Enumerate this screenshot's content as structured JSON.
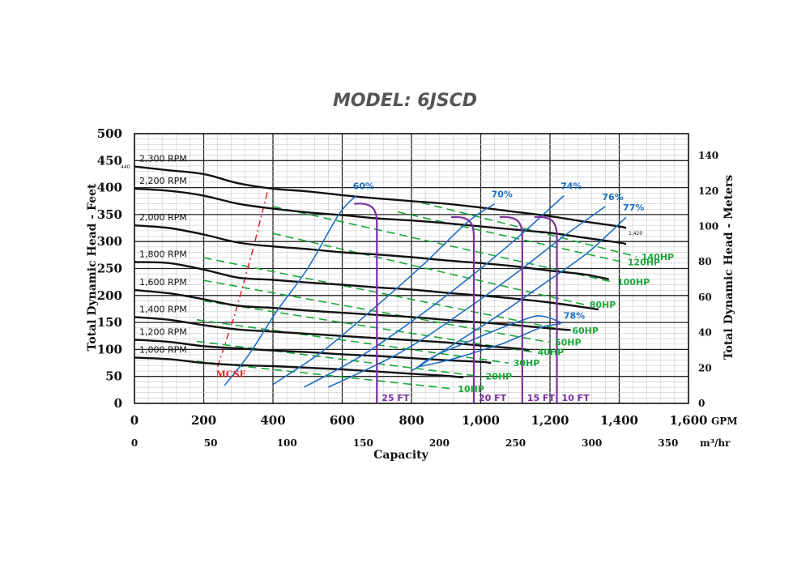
{
  "title": "MODEL: 6JSCD",
  "chart_data": {
    "type": "line",
    "title": "MODEL: 6JSCD",
    "xlabel": "Capacity",
    "ylabel": "Total Dynamic Head - Feet",
    "ylabel_right": "Total Dynamic Head - Meters",
    "x_unit": "GPM",
    "x2_unit": "m³/hr",
    "xlim": [
      0,
      1600
    ],
    "ylim": [
      0,
      500
    ],
    "x_ticks": [
      "0",
      "200",
      "400",
      "600",
      "800",
      "1,000",
      "1,200",
      "1,400",
      "1,600"
    ],
    "x2_ticks": [
      "0",
      "50",
      "100",
      "150",
      "200",
      "250",
      "300",
      "350"
    ],
    "y_ticks": [
      "0",
      "50",
      "100",
      "150",
      "200",
      "250",
      "300",
      "350",
      "400",
      "450",
      "500"
    ],
    "y2_ticks": [
      "0",
      "20",
      "40",
      "60",
      "80",
      "100",
      "120",
      "140"
    ],
    "small_labels": {
      "left_440": "440",
      "right_1420": "1,420"
    },
    "grid": true,
    "speed_curves": [
      {
        "name": "2,300 RPM",
        "points": [
          [
            0,
            439
          ],
          [
            100,
            432
          ],
          [
            200,
            425
          ],
          [
            300,
            408
          ],
          [
            400,
            398
          ],
          [
            500,
            393
          ],
          [
            600,
            386
          ],
          [
            700,
            380
          ],
          [
            800,
            375
          ],
          [
            900,
            370
          ],
          [
            1000,
            363
          ],
          [
            1100,
            355
          ],
          [
            1200,
            347
          ],
          [
            1300,
            337
          ],
          [
            1400,
            328
          ],
          [
            1420,
            325
          ]
        ]
      },
      {
        "name": "2,200 RPM",
        "points": [
          [
            0,
            398
          ],
          [
            100,
            394
          ],
          [
            200,
            385
          ],
          [
            300,
            370
          ],
          [
            400,
            361
          ],
          [
            500,
            354
          ],
          [
            600,
            349
          ],
          [
            700,
            343
          ],
          [
            800,
            339
          ],
          [
            900,
            334
          ],
          [
            1000,
            328
          ],
          [
            1100,
            322
          ],
          [
            1200,
            316
          ],
          [
            1300,
            307
          ],
          [
            1400,
            298
          ],
          [
            1420,
            295
          ]
        ]
      },
      {
        "name": "2,000 RPM",
        "points": [
          [
            0,
            330
          ],
          [
            100,
            325
          ],
          [
            200,
            313
          ],
          [
            300,
            298
          ],
          [
            400,
            291
          ],
          [
            500,
            286
          ],
          [
            600,
            280
          ],
          [
            700,
            276
          ],
          [
            800,
            271
          ],
          [
            900,
            265
          ],
          [
            1000,
            260
          ],
          [
            1100,
            254
          ],
          [
            1200,
            246
          ],
          [
            1300,
            239
          ],
          [
            1370,
            230
          ]
        ]
      },
      {
        "name": "1,800 RPM",
        "points": [
          [
            0,
            262
          ],
          [
            100,
            260
          ],
          [
            200,
            248
          ],
          [
            300,
            233
          ],
          [
            400,
            229
          ],
          [
            500,
            224
          ],
          [
            600,
            220
          ],
          [
            700,
            215
          ],
          [
            800,
            211
          ],
          [
            900,
            205
          ],
          [
            1000,
            200
          ],
          [
            1100,
            194
          ],
          [
            1200,
            187
          ],
          [
            1300,
            178
          ],
          [
            1340,
            174
          ]
        ]
      },
      {
        "name": "1,600 RPM",
        "points": [
          [
            0,
            210
          ],
          [
            100,
            204
          ],
          [
            200,
            193
          ],
          [
            300,
            181
          ],
          [
            400,
            177
          ],
          [
            500,
            172
          ],
          [
            600,
            168
          ],
          [
            700,
            164
          ],
          [
            800,
            160
          ],
          [
            900,
            155
          ],
          [
            1000,
            150
          ],
          [
            1100,
            145
          ],
          [
            1200,
            139
          ],
          [
            1260,
            136
          ]
        ]
      },
      {
        "name": "1,400 RPM",
        "points": [
          [
            0,
            160
          ],
          [
            100,
            155
          ],
          [
            200,
            145
          ],
          [
            300,
            137
          ],
          [
            400,
            133
          ],
          [
            500,
            129
          ],
          [
            600,
            125
          ],
          [
            700,
            121
          ],
          [
            800,
            117
          ],
          [
            900,
            113
          ],
          [
            1000,
            107
          ],
          [
            1100,
            102
          ],
          [
            1140,
            99
          ]
        ]
      },
      {
        "name": "1,200 RPM",
        "points": [
          [
            0,
            118
          ],
          [
            100,
            114
          ],
          [
            200,
            106
          ],
          [
            300,
            102
          ],
          [
            400,
            98
          ],
          [
            500,
            95
          ],
          [
            600,
            91
          ],
          [
            700,
            88
          ],
          [
            800,
            84
          ],
          [
            900,
            80
          ],
          [
            1000,
            77
          ],
          [
            1030,
            75
          ]
        ]
      },
      {
        "name": "1,000 RPM",
        "points": [
          [
            0,
            85
          ],
          [
            100,
            82
          ],
          [
            200,
            75
          ],
          [
            300,
            71
          ],
          [
            400,
            69
          ],
          [
            500,
            66
          ],
          [
            600,
            63
          ],
          [
            700,
            59
          ],
          [
            800,
            55
          ],
          [
            900,
            51
          ],
          [
            950,
            48
          ]
        ]
      }
    ],
    "efficiency_curves": [
      {
        "name": "60%",
        "points": [
          [
            260,
            33
          ],
          [
            330,
            90
          ],
          [
            410,
            170
          ],
          [
            500,
            250
          ],
          [
            590,
            350
          ],
          [
            640,
            385
          ]
        ]
      },
      {
        "name": "70%",
        "points": [
          [
            400,
            35
          ],
          [
            540,
            95
          ],
          [
            680,
            170
          ],
          [
            830,
            255
          ],
          [
            960,
            335
          ],
          [
            1040,
            370
          ]
        ]
      },
      {
        "name": "74%",
        "points": [
          [
            490,
            30
          ],
          [
            660,
            90
          ],
          [
            850,
            175
          ],
          [
            1000,
            250
          ],
          [
            1120,
            315
          ],
          [
            1240,
            385
          ]
        ]
      },
      {
        "name": "76%",
        "points": [
          [
            560,
            30
          ],
          [
            770,
            95
          ],
          [
            960,
            175
          ],
          [
            1120,
            250
          ],
          [
            1240,
            310
          ],
          [
            1360,
            365
          ]
        ]
      },
      {
        "name": "77%",
        "points": [
          [
            800,
            60
          ],
          [
            1020,
            150
          ],
          [
            1190,
            225
          ],
          [
            1310,
            280
          ],
          [
            1420,
            345
          ]
        ]
      },
      {
        "name": "78%",
        "points": [
          [
            820,
            68
          ],
          [
            880,
            76
          ],
          [
            940,
            86
          ],
          [
            1000,
            98
          ],
          [
            1060,
            110
          ],
          [
            1120,
            126
          ],
          [
            1180,
            142
          ],
          [
            1230,
            148
          ],
          [
            1220,
            153
          ],
          [
            1190,
            160
          ],
          [
            1160,
            162
          ],
          [
            1120,
            154
          ],
          [
            1060,
            140
          ],
          [
            1000,
            124
          ],
          [
            940,
            108
          ],
          [
            880,
            92
          ],
          [
            840,
            78
          ],
          [
            820,
            68
          ]
        ]
      }
    ],
    "horsepower_lines": [
      {
        "name": "140HP",
        "points": [
          [
            830,
            372
          ],
          [
            1450,
            272
          ]
        ]
      },
      {
        "name": "120HP",
        "points": [
          [
            760,
            355
          ],
          [
            1410,
            262
          ]
        ]
      },
      {
        "name": "100HP",
        "points": [
          [
            400,
            365
          ],
          [
            1380,
            225
          ]
        ]
      },
      {
        "name": "80HP",
        "points": [
          [
            400,
            315
          ],
          [
            1300,
            183
          ]
        ]
      },
      {
        "name": "60HP",
        "points": [
          [
            200,
            270
          ],
          [
            1250,
            135
          ]
        ]
      },
      {
        "name": "50HP",
        "points": [
          [
            200,
            228
          ],
          [
            1200,
            113
          ]
        ]
      },
      {
        "name": "40HP",
        "points": [
          [
            200,
            190
          ],
          [
            1150,
            95
          ]
        ]
      },
      {
        "name": "30HP",
        "points": [
          [
            180,
            155
          ],
          [
            1080,
            75
          ]
        ]
      },
      {
        "name": "20HP",
        "points": [
          [
            180,
            115
          ],
          [
            1000,
            50
          ]
        ]
      },
      {
        "name": "10HP",
        "points": [
          [
            180,
            78
          ],
          [
            920,
            27
          ]
        ]
      }
    ],
    "npsh_curves": [
      {
        "name": "25 FT",
        "x": 700,
        "top": 370
      },
      {
        "name": "20 FT",
        "x": 980,
        "top": 345
      },
      {
        "name": "15 FT",
        "x": 1120,
        "top": 345
      },
      {
        "name": "10 FT",
        "x": 1220,
        "top": 345
      }
    ],
    "mcsf": {
      "name": "MCSF",
      "points": [
        [
          240,
          68
        ],
        [
          290,
          165
        ],
        [
          340,
          280
        ],
        [
          385,
          395
        ]
      ]
    }
  }
}
